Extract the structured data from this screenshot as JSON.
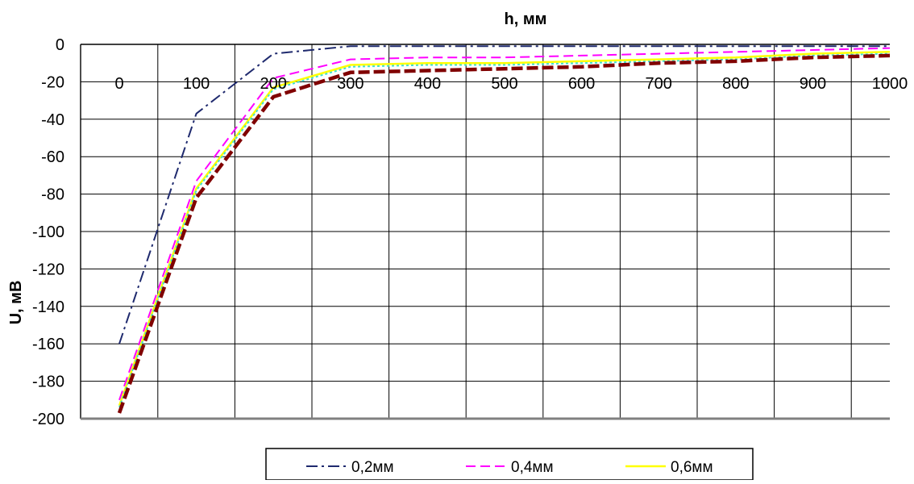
{
  "chart_data": {
    "type": "line",
    "title": "",
    "xlabel": "h, мм",
    "ylabel": "U, мВ",
    "x": [
      0,
      100,
      200,
      300,
      400,
      500,
      600,
      700,
      800,
      900,
      1000
    ],
    "x_ticks": [
      "0",
      "100",
      "200",
      "300",
      "400",
      "500",
      "600",
      "700",
      "800",
      "900",
      "1000"
    ],
    "y_ticks": [
      "0",
      "-20",
      "-40",
      "-60",
      "-80",
      "-100",
      "-120",
      "-140",
      "-160",
      "-180",
      "-200"
    ],
    "xlim": [
      0,
      1000
    ],
    "ylim": [
      -200,
      0
    ],
    "grid": true,
    "x_axis_position": "top",
    "legend_position": "bottom",
    "series": [
      {
        "name": "0,2мм",
        "color": "#1f2a6e",
        "dash": "dash-dot",
        "values": [
          -160,
          -37,
          -5,
          -1,
          -1,
          -1,
          -1,
          -1,
          -1,
          -1,
          -1
        ]
      },
      {
        "name": "0,4мм",
        "color": "#ff00ff",
        "dash": "dashed",
        "values": [
          -190,
          -73,
          -18,
          -8,
          -7,
          -7,
          -6,
          -5,
          -4,
          -3,
          -2
        ]
      },
      {
        "name": "0,6мм",
        "color": "#ffff00",
        "dash": "solid",
        "values": [
          -193,
          -77,
          -23,
          -11,
          -10,
          -10,
          -9,
          -8,
          -7,
          -5,
          -4
        ]
      },
      {
        "name": "",
        "color": "#40e0d0",
        "dash": "dotted",
        "values": [
          -194,
          -78,
          -24,
          -12,
          -11,
          -11,
          -10,
          -9,
          -8,
          -6,
          -5
        ]
      },
      {
        "name": "",
        "color": "#800000",
        "dash": "thick-dashed",
        "values": [
          -197,
          -82,
          -28,
          -15,
          -14,
          -13,
          -12,
          -10,
          -9,
          -7,
          -6
        ]
      }
    ]
  }
}
